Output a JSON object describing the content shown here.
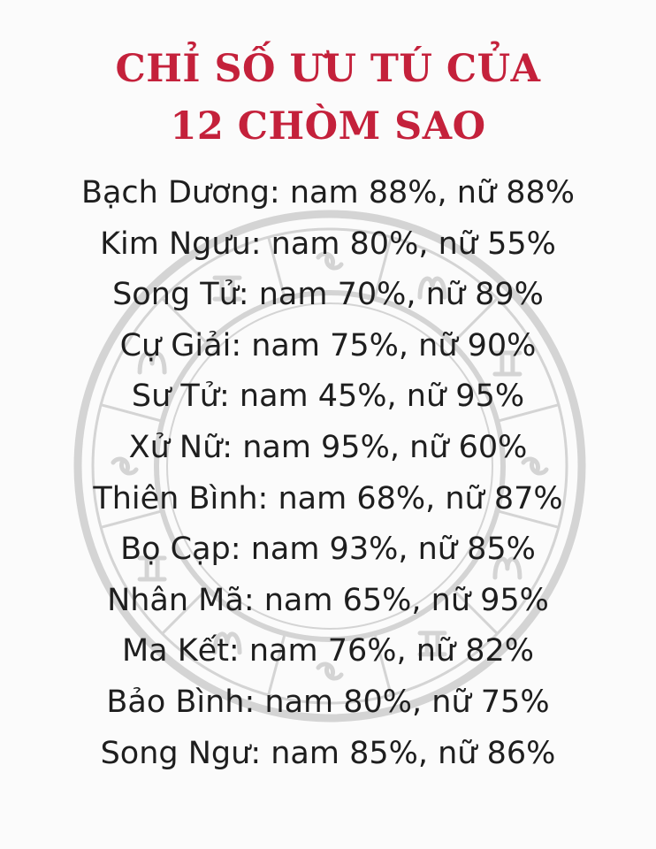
{
  "title": {
    "line1": "CHỈ SỐ ƯU TÚ CỦA",
    "line2": "12 CHÒM SAO"
  },
  "rows": [
    "Bạch Dương: nam 88%, nữ 88%",
    "Kim Ngưu: nam 80%, nữ 55%",
    "Song Tử: nam 70%, nữ 89%",
    "Cự Giải: nam 75%, nữ 90%",
    "Sư Tử: nam 45%, nữ 95%",
    "Xử Nữ: nam 95%, nữ 60%",
    "Thiên Bình: nam 68%, nữ 87%",
    "Bọ Cạp: nam 93%, nữ 85%",
    "Nhân Mã: nam 65%, nữ 95%",
    "Ma Kết: nam 76%, nữ 82%",
    "Bảo Bình: nam 80%, nữ 75%",
    "Song Ngư: nam 85%, nữ 86%"
  ],
  "colors": {
    "title": "#c4213b",
    "text": "#1e1e1e",
    "wheel": "#d2d2d2"
  },
  "background_icon": "zodiac-wheel-icon"
}
